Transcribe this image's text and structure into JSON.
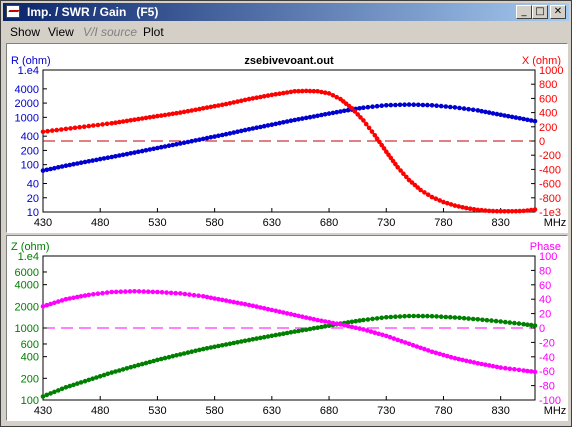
{
  "window": {
    "title": "Imp. / SWR / Gain   (F5)",
    "minimize": "_",
    "maximize": "□",
    "close": "✕"
  },
  "menu": [
    "Show",
    "View",
    "V/I source",
    "Plot"
  ],
  "colors": {
    "red": "#ff0000",
    "blue": "#0000d0",
    "green": "#008000",
    "magenta": "#ff00ff",
    "darkred": "#c00000"
  },
  "chart_data": [
    {
      "type": "line",
      "title": "zsebivevoant.out",
      "xlabel": "MHz",
      "x_ticks": [
        "430",
        "480",
        "530",
        "580",
        "630",
        "680",
        "730",
        "780",
        "830"
      ],
      "xlim": [
        430,
        860
      ],
      "left_axis": {
        "label": "R (ohm)",
        "scale": "log",
        "ylim": [
          10,
          10000
        ],
        "tick_labels": [
          "1.e4",
          "4000",
          "2000",
          "1000",
          "400",
          "200",
          "100",
          "40",
          "20",
          "10"
        ],
        "tick_values": [
          10000,
          4000,
          2000,
          1000,
          400,
          200,
          100,
          40,
          20,
          10
        ]
      },
      "right_axis": {
        "label": "X (ohm)",
        "scale": "linear",
        "ylim": [
          -1000,
          1000
        ],
        "tick_labels": [
          "1000",
          "800",
          "600",
          "400",
          "200",
          "0",
          "-200",
          "-400",
          "-600",
          "-800",
          "-1e3"
        ],
        "tick_values": [
          1000,
          800,
          600,
          400,
          200,
          0,
          -200,
          -400,
          -600,
          -800,
          -1000
        ]
      },
      "series": [
        {
          "axis": "left",
          "color": "blue",
          "x": [
            430,
            450,
            470,
            490,
            510,
            530,
            550,
            570,
            590,
            610,
            630,
            650,
            670,
            690,
            710,
            730,
            750,
            770,
            790,
            810,
            830,
            850,
            860
          ],
          "y": [
            75,
            95,
            118,
            145,
            180,
            225,
            280,
            350,
            440,
            560,
            700,
            880,
            1080,
            1330,
            1600,
            1800,
            1860,
            1800,
            1620,
            1400,
            1130,
            920,
            830
          ]
        },
        {
          "axis": "right",
          "color": "red",
          "x": [
            430,
            450,
            470,
            490,
            510,
            530,
            550,
            570,
            590,
            610,
            630,
            650,
            660,
            670,
            680,
            690,
            700,
            710,
            720,
            730,
            740,
            750,
            760,
            770,
            780,
            790,
            800,
            810,
            820,
            830,
            840,
            850,
            860
          ],
          "y": [
            130,
            170,
            210,
            250,
            300,
            350,
            400,
            460,
            520,
            590,
            650,
            700,
            705,
            700,
            670,
            590,
            460,
            290,
            80,
            -150,
            -370,
            -550,
            -690,
            -790,
            -860,
            -910,
            -945,
            -970,
            -985,
            -990,
            -990,
            -985,
            -965
          ]
        }
      ]
    },
    {
      "type": "line",
      "xlabel": "MHz",
      "x_ticks": [
        "430",
        "480",
        "530",
        "580",
        "630",
        "680",
        "730",
        "780",
        "830"
      ],
      "xlim": [
        430,
        860
      ],
      "left_axis": {
        "label": "Z (ohm)",
        "scale": "log",
        "ylim": [
          100,
          10000
        ],
        "tick_labels": [
          "1.e4",
          "6000",
          "4000",
          "2000",
          "1000",
          "600",
          "400",
          "200",
          "100"
        ],
        "tick_values": [
          10000,
          6000,
          4000,
          2000,
          1000,
          600,
          400,
          200,
          100
        ]
      },
      "right_axis": {
        "label": "Phase",
        "scale": "linear",
        "ylim": [
          -100,
          100
        ],
        "tick_labels": [
          "100",
          "80",
          "60",
          "40",
          "20",
          "0",
          "-20",
          "-40",
          "-60",
          "-80",
          "-100"
        ],
        "tick_values": [
          100,
          80,
          60,
          40,
          20,
          0,
          -20,
          -40,
          -60,
          -80,
          -100
        ]
      },
      "series": [
        {
          "axis": "left",
          "color": "green",
          "x": [
            430,
            450,
            470,
            490,
            510,
            530,
            550,
            570,
            590,
            610,
            630,
            650,
            670,
            690,
            710,
            730,
            750,
            770,
            790,
            810,
            830,
            850,
            860
          ],
          "y": [
            112,
            150,
            190,
            240,
            295,
            360,
            430,
            510,
            590,
            680,
            780,
            890,
            1010,
            1150,
            1290,
            1410,
            1470,
            1460,
            1400,
            1320,
            1230,
            1130,
            1080
          ]
        },
        {
          "axis": "right",
          "color": "magenta",
          "x": [
            430,
            450,
            470,
            490,
            510,
            530,
            550,
            570,
            590,
            610,
            630,
            650,
            670,
            690,
            710,
            730,
            750,
            770,
            790,
            810,
            830,
            850,
            860
          ],
          "y": [
            30,
            40,
            46,
            50,
            51,
            50,
            48,
            44,
            38,
            32,
            25,
            18,
            11,
            5,
            -2,
            -11,
            -22,
            -33,
            -42,
            -49,
            -55,
            -59,
            -61
          ]
        }
      ]
    }
  ]
}
